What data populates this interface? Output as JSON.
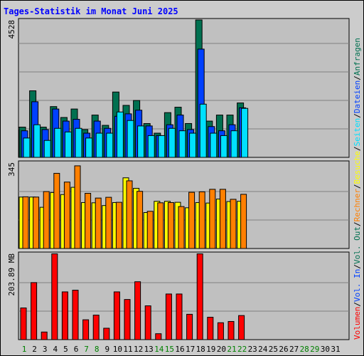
{
  "chart_data": {
    "type": "bar",
    "title": "Tages-Statistik im Monat Juni 2025",
    "x": [
      1,
      2,
      3,
      4,
      5,
      6,
      7,
      8,
      9,
      10,
      11,
      12,
      13,
      14,
      15,
      16,
      17,
      18,
      19,
      20,
      21,
      22,
      23,
      24,
      25,
      26,
      27,
      28,
      29,
      30,
      31
    ],
    "weekend_days": [
      1,
      7,
      8,
      14,
      15,
      21,
      22,
      28,
      29
    ],
    "colors": {
      "weekday": "#000000",
      "weekend": "#008000",
      "title": "#0000ff",
      "anfragen": "#007050",
      "dateien": "#0040ff",
      "seiten": "#00e0ff",
      "besuche": "#ffff00",
      "rechner": "#ff8000",
      "volumen": "#ff0000"
    },
    "panels": [
      {
        "ymax_label": "4528",
        "ylim": [
          0,
          4528
        ],
        "series": [
          {
            "name": "Anfragen",
            "values": [
              996,
              2193,
              996,
              1673,
              1314,
              1593,
              916,
              1394,
              1055,
              2153,
              1713,
              1873,
              1114,
              797,
              1474,
              1653,
              1115,
              4528,
              1195,
              1394,
              1394,
              1793
            ]
          },
          {
            "name": "Dateien",
            "values": [
              876,
              1833,
              916,
              1593,
              1195,
              1254,
              797,
              1195,
              956,
              1354,
              1434,
              1554,
              1035,
              717,
              1075,
              1394,
              916,
              3567,
              1015,
              876,
              1075,
              1634
            ]
          },
          {
            "name": "Seiten",
            "values": [
              637,
              1075,
              558,
              956,
              837,
              956,
              637,
              797,
              797,
              1495,
              1215,
              1035,
              717,
              717,
              956,
              876,
              797,
              1753,
              797,
              717,
              876,
              1614
            ]
          }
        ]
      },
      {
        "ymax_label": "345",
        "ylim": [
          0,
          345
        ],
        "series": [
          {
            "name": "Besuche",
            "values": [
              206,
              206,
              165,
              224,
              216,
              245,
              184,
              183,
              172,
              184,
              283,
              241,
              144,
              189,
              189,
              185,
              163,
              184,
              182,
              198,
              188,
              189
            ]
          },
          {
            "name": "Rechner",
            "values": [
              207,
              206,
              228,
              301,
              266,
              331,
              221,
              202,
              205,
              185,
              271,
              229,
              149,
              183,
              184,
              168,
              225,
              227,
              237,
              237,
              197,
              217
            ]
          }
        ]
      },
      {
        "ymax_label": "203.89 MB",
        "ylim": [
          0,
          203.89
        ],
        "series": [
          {
            "name": "Volumen",
            "values": [
              75,
              135,
              18,
              203,
              113,
              117,
              47,
              58,
              27,
              113,
              95,
              137,
              80,
              14,
              108,
              108,
              60,
              203,
              53,
              40,
              43,
              57
            ]
          }
        ]
      }
    ],
    "right_labels": [
      "Anfragen",
      "Dateien",
      "Seiten",
      "Besuche",
      "Rechner",
      "Vol. Out",
      "Vol. In",
      "Volumen"
    ],
    "separator": "/"
  }
}
